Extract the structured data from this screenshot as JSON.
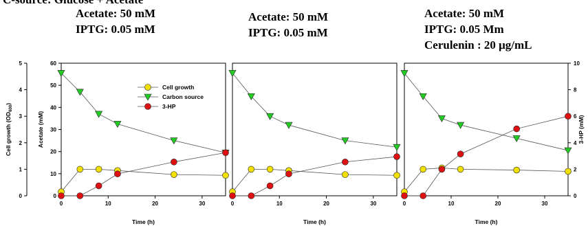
{
  "header_fragment": "C-source: Glucose + Acetate",
  "chart_data": {
    "type": "line",
    "panels": [
      {
        "caption_lines": [
          "Acetate: 50 mM",
          "IPTG: 0.05 mM"
        ],
        "x": [
          0,
          4,
          8,
          12,
          24,
          35
        ],
        "series": [
          {
            "name": "Cell growth",
            "axis": "left",
            "values": [
              0.15,
              1.0,
              1.0,
              0.95,
              0.8,
              0.77
            ]
          },
          {
            "name": "Carbon source",
            "axis": "acetate",
            "values": [
              55.5,
              47,
              37,
              32.5,
              25,
              19.5
            ]
          },
          {
            "name": "3-HP",
            "axis": "right",
            "values": [
              0,
              0,
              0.75,
              1.65,
              2.55,
              3.25
            ]
          }
        ]
      },
      {
        "caption_lines": [
          "Acetate: 50 mM",
          "IPTG: 0.05 mM"
        ],
        "x": [
          0,
          4,
          8,
          12,
          24,
          35
        ],
        "series": [
          {
            "name": "Cell growth",
            "axis": "left",
            "values": [
              0.15,
              1.0,
              1.0,
              0.95,
              0.8,
              0.77
            ]
          },
          {
            "name": "Carbon source",
            "axis": "acetate",
            "values": [
              55.5,
              45,
              36,
              32,
              25,
              22
            ]
          },
          {
            "name": "3-HP",
            "axis": "right",
            "values": [
              0,
              0,
              0.75,
              1.65,
              2.55,
              2.95
            ]
          }
        ]
      },
      {
        "caption_lines": [
          "Acetate: 50 mM",
          "IPTG: 0.05 Mm",
          "Cerulenin : 20 μg/mL"
        ],
        "x": [
          0,
          4,
          8,
          12,
          24,
          35
        ],
        "series": [
          {
            "name": "Cell growth",
            "axis": "left",
            "values": [
              0.15,
              1.0,
              1.05,
              1.0,
              0.97,
              0.92
            ]
          },
          {
            "name": "Carbon source",
            "axis": "acetate",
            "values": [
              55.5,
              45,
              35,
              32,
              26,
              20.5
            ]
          },
          {
            "name": "3-HP",
            "axis": "right",
            "values": [
              0,
              0,
              2.0,
              3.15,
              5.05,
              6.0
            ]
          }
        ]
      }
    ],
    "left_axis": {
      "label": "Cell growth (OD",
      "label_sub": "600",
      "label_end": ")",
      "range": [
        0,
        5
      ],
      "ticks": [
        "0",
        "1",
        "2",
        "3",
        "4",
        "5"
      ]
    },
    "acetate_axis": {
      "label": "Acetate (mM)",
      "range": [
        0,
        60
      ],
      "ticks": [
        "0",
        "10",
        "20",
        "30",
        "40",
        "50",
        "60"
      ]
    },
    "right_axis": {
      "label": "3-HP (mM)",
      "range": [
        0,
        10
      ],
      "ticks": [
        "0",
        "2",
        "4",
        "6",
        "8",
        "10"
      ]
    },
    "x_axis": {
      "label": "Time (h)",
      "range": [
        0,
        35
      ],
      "ticks": [
        "0",
        "10",
        "20",
        "30"
      ]
    },
    "legend": {
      "placement": "top-center of first panel",
      "entries": [
        {
          "name": "Cell growth",
          "marker": "circle",
          "color": "#f2e000"
        },
        {
          "name": "Carbon source",
          "marker": "triangle-down",
          "color": "#22cc22"
        },
        {
          "name": "3-HP",
          "marker": "circle",
          "color": "#dd1111"
        }
      ]
    },
    "grid": false
  }
}
